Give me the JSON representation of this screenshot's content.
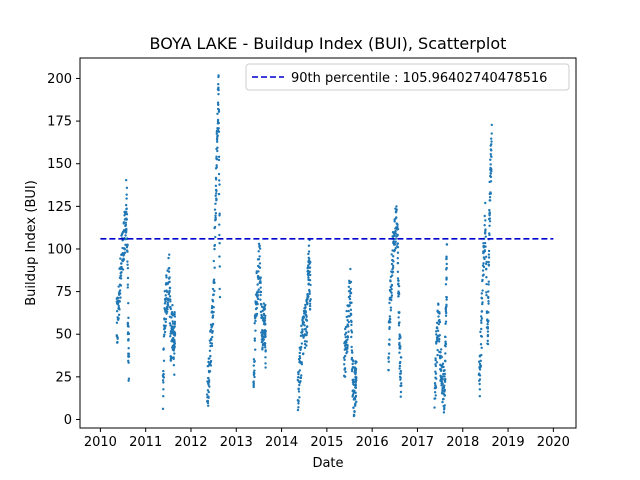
{
  "chart_data": {
    "type": "scatter",
    "title": "BOYA LAKE - Buildup Index (BUI), Scatterplot",
    "xlabel": "Date",
    "ylabel": "Buildup Index (BUI)",
    "xlim": [
      2009.55,
      2020.5
    ],
    "ylim": [
      -5,
      212
    ],
    "x_ticks": [
      2010,
      2011,
      2012,
      2013,
      2014,
      2015,
      2016,
      2017,
      2018,
      2019,
      2020
    ],
    "y_ticks": [
      0,
      25,
      50,
      75,
      100,
      125,
      150,
      175,
      200
    ],
    "marker_color": "#1f77b4",
    "reference_line": {
      "label": "90th percentile : 105.96402740478516",
      "value": 105.96402740478516,
      "x_range": [
        2010,
        2020
      ],
      "color": "#0000cc",
      "style": "dashed"
    },
    "legend_position": "top-right",
    "season_envelopes": [
      {
        "year": 2010,
        "points": [
          [
            2010.36,
            55
          ],
          [
            2010.4,
            65
          ],
          [
            2010.45,
            90
          ],
          [
            2010.5,
            100
          ],
          [
            2010.55,
            112
          ],
          [
            2010.58,
            130
          ],
          [
            2010.61,
            60
          ],
          [
            2010.63,
            30
          ]
        ]
      },
      {
        "year": 2011,
        "points": [
          [
            2011.38,
            15
          ],
          [
            2011.42,
            60
          ],
          [
            2011.47,
            75
          ],
          [
            2011.52,
            85
          ],
          [
            2011.56,
            45
          ],
          [
            2011.6,
            55
          ],
          [
            2011.63,
            40
          ],
          [
            2011.65,
            60
          ]
        ]
      },
      {
        "year": 2012,
        "points": [
          [
            2012.36,
            15
          ],
          [
            2012.4,
            30
          ],
          [
            2012.45,
            50
          ],
          [
            2012.5,
            70
          ],
          [
            2012.55,
            130
          ],
          [
            2012.58,
            160
          ],
          [
            2012.61,
            195
          ],
          [
            2012.64,
            70
          ]
        ]
      },
      {
        "year": 2013,
        "points": [
          [
            2013.38,
            25
          ],
          [
            2013.42,
            55
          ],
          [
            2013.47,
            80
          ],
          [
            2013.52,
            95
          ],
          [
            2013.56,
            55
          ],
          [
            2013.6,
            50
          ],
          [
            2013.63,
            60
          ],
          [
            2013.65,
            35
          ]
        ]
      },
      {
        "year": 2014,
        "points": [
          [
            2014.36,
            10
          ],
          [
            2014.4,
            30
          ],
          [
            2014.45,
            45
          ],
          [
            2014.5,
            55
          ],
          [
            2014.55,
            55
          ],
          [
            2014.58,
            75
          ],
          [
            2014.61,
            95
          ],
          [
            2014.64,
            70
          ]
        ]
      },
      {
        "year": 2015,
        "points": [
          [
            2015.38,
            30
          ],
          [
            2015.42,
            45
          ],
          [
            2015.47,
            60
          ],
          [
            2015.52,
            80
          ],
          [
            2015.56,
            30
          ],
          [
            2015.6,
            15
          ],
          [
            2015.63,
            20
          ],
          [
            2015.65,
            25
          ]
        ]
      },
      {
        "year": 2016,
        "points": [
          [
            2016.36,
            40
          ],
          [
            2016.4,
            70
          ],
          [
            2016.45,
            95
          ],
          [
            2016.5,
            110
          ],
          [
            2016.55,
            120
          ],
          [
            2016.58,
            80
          ],
          [
            2016.61,
            40
          ],
          [
            2016.64,
            20
          ]
        ]
      },
      {
        "year": 2017,
        "points": [
          [
            2017.38,
            10
          ],
          [
            2017.42,
            40
          ],
          [
            2017.47,
            60
          ],
          [
            2017.52,
            30
          ],
          [
            2017.56,
            20
          ],
          [
            2017.6,
            15
          ],
          [
            2017.63,
            60
          ],
          [
            2017.65,
            100
          ]
        ]
      },
      {
        "year": 2018,
        "points": [
          [
            2018.36,
            20
          ],
          [
            2018.4,
            45
          ],
          [
            2018.45,
            85
          ],
          [
            2018.5,
            120
          ],
          [
            2018.55,
            40
          ],
          [
            2018.58,
            100
          ],
          [
            2018.61,
            140
          ],
          [
            2018.64,
            165
          ]
        ]
      }
    ]
  }
}
